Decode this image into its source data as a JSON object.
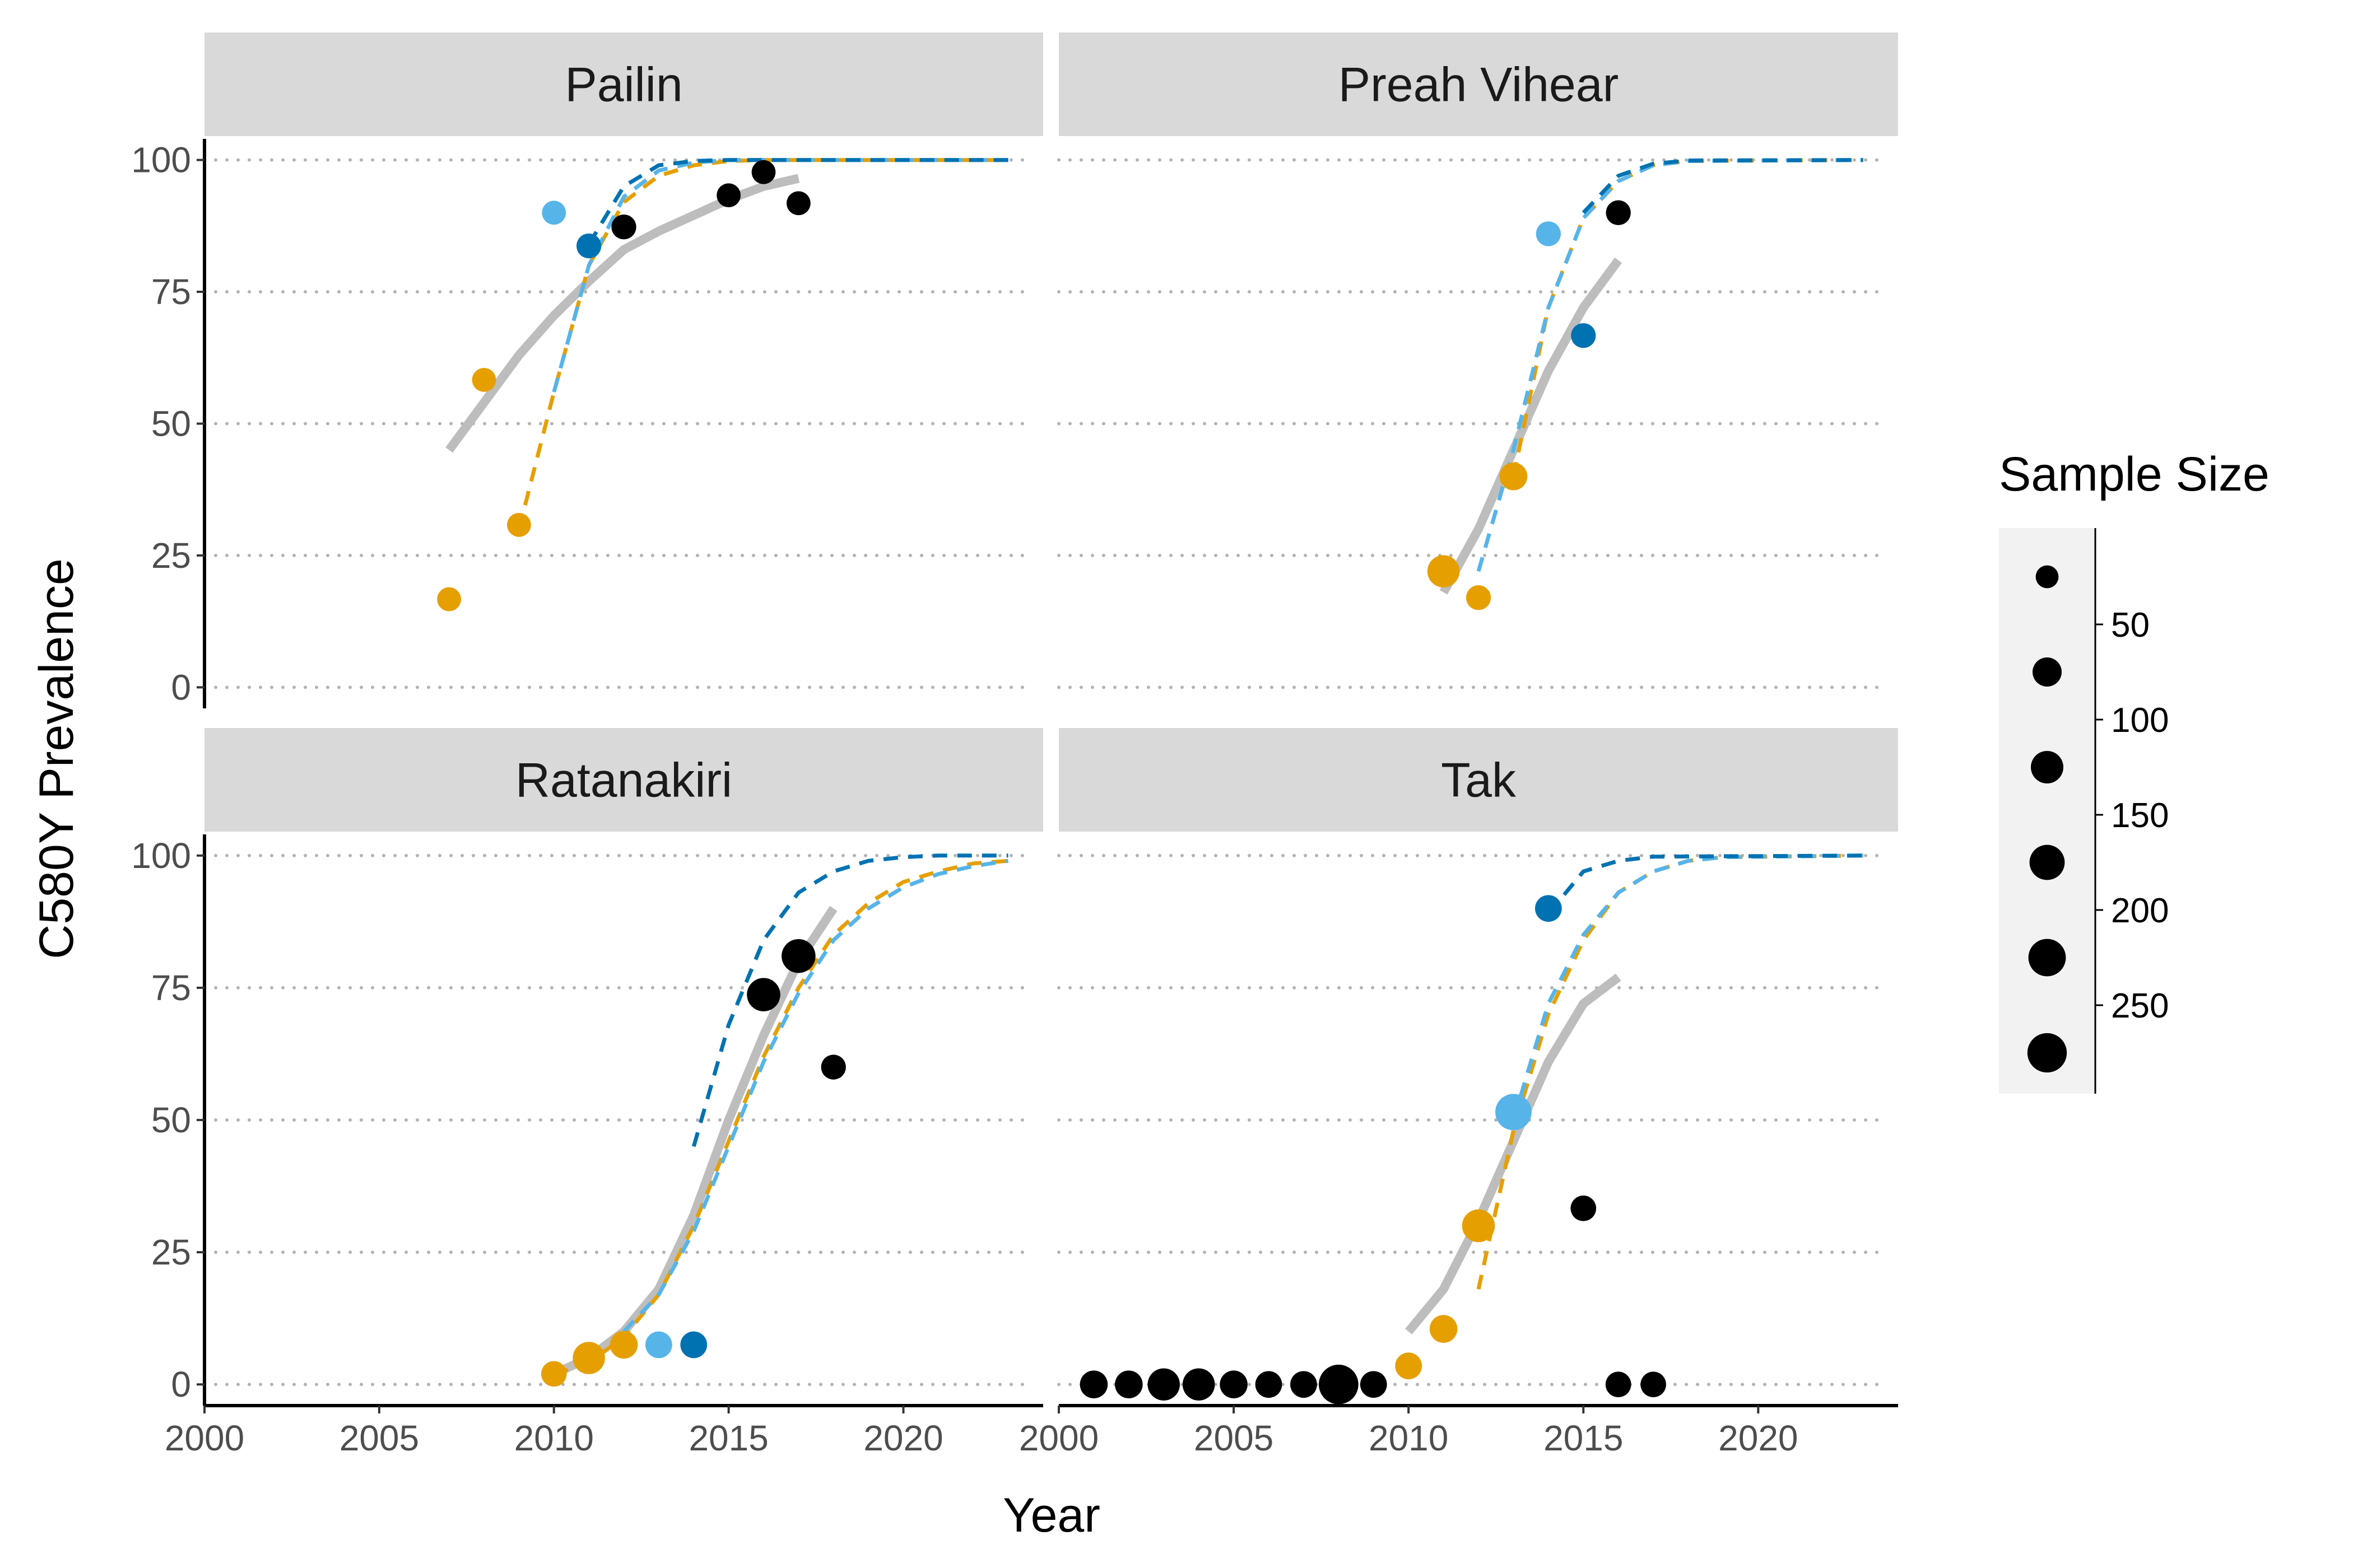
{
  "chart_data": {
    "type": "scatter",
    "xlabel": "Year",
    "ylabel": "C580Y Prevalence",
    "xlim": [
      2000,
      2024
    ],
    "ylim": [
      -4,
      104
    ],
    "x_ticks": [
      "2000",
      "2005",
      "2010",
      "2015",
      "2020"
    ],
    "y_ticks": [
      "0",
      "25",
      "50",
      "75",
      "100"
    ],
    "grid": "horizontal-dotted",
    "colors": {
      "gray": "#bdbdbd",
      "dark_blue": "#0072b2",
      "light_blue": "#56b4e9",
      "orange": "#e69f00",
      "black": "#000000",
      "strip": "#d9d9d9",
      "grid": "#b3b3b3",
      "legend_bg": "#f2f2f2"
    },
    "legend": {
      "title": "Sample Size",
      "position": "right",
      "size_scale": {
        "min": 20,
        "max": 300
      },
      "labels": [
        "50",
        "100",
        "150",
        "200",
        "250"
      ],
      "label_values": [
        50,
        100,
        150,
        200,
        250
      ],
      "key_sizes": [
        25,
        75,
        125,
        175,
        225,
        275
      ]
    },
    "panels": [
      {
        "title": "Pailin",
        "points": [
          {
            "x": 2007,
            "y": 16.7,
            "n": 30,
            "color": "orange"
          },
          {
            "x": 2008,
            "y": 58.3,
            "n": 30,
            "color": "orange"
          },
          {
            "x": 2009,
            "y": 30.8,
            "n": 30,
            "color": "orange"
          },
          {
            "x": 2010,
            "y": 90,
            "n": 30,
            "color": "light_blue"
          },
          {
            "x": 2011,
            "y": 83.7,
            "n": 35,
            "color": "dark_blue"
          },
          {
            "x": 2012,
            "y": 87.3,
            "n": 35,
            "color": "black"
          },
          {
            "x": 2015,
            "y": 93.3,
            "n": 30,
            "color": "black"
          },
          {
            "x": 2016,
            "y": 97.7,
            "n": 30,
            "color": "black"
          },
          {
            "x": 2017,
            "y": 91.8,
            "n": 30,
            "color": "black"
          }
        ],
        "lines": [
          {
            "color": "gray",
            "style": "solid",
            "x": [
              2007,
              2008,
              2009,
              2010,
              2011,
              2012,
              2013,
              2014,
              2015,
              2016,
              2017
            ],
            "y": [
              45,
              54,
              63,
              70.5,
              77,
              83,
              86.5,
              89.5,
              92.5,
              95,
              96.5
            ]
          },
          {
            "color": "orange",
            "style": "dashed",
            "x": [
              2009,
              2010,
              2011,
              2012,
              2013,
              2014,
              2015,
              2016,
              2023
            ],
            "y": [
              30,
              56,
              80,
              92,
              97,
              99,
              99.8,
              100,
              100
            ]
          },
          {
            "color": "light_blue",
            "style": "dashed",
            "x": [
              2010,
              2011,
              2012,
              2013,
              2014,
              2015,
              2016,
              2023
            ],
            "y": [
              56,
              80,
              93,
              98,
              99.5,
              100,
              100,
              100
            ]
          },
          {
            "color": "dark_blue",
            "style": "dashed",
            "x": [
              2011,
              2012,
              2013,
              2014,
              2015,
              2016,
              2023
            ],
            "y": [
              84,
              95,
              99,
              99.8,
              100,
              100,
              100
            ]
          }
        ]
      },
      {
        "title": "Preah Vihear",
        "points": [
          {
            "x": 2011,
            "y": 22,
            "n": 120,
            "color": "orange"
          },
          {
            "x": 2012,
            "y": 17,
            "n": 35,
            "color": "orange"
          },
          {
            "x": 2013,
            "y": 40,
            "n": 60,
            "color": "orange"
          },
          {
            "x": 2014,
            "y": 86,
            "n": 35,
            "color": "light_blue"
          },
          {
            "x": 2015,
            "y": 66.7,
            "n": 35,
            "color": "dark_blue"
          },
          {
            "x": 2016,
            "y": 90,
            "n": 35,
            "color": "black"
          }
        ],
        "lines": [
          {
            "color": "gray",
            "style": "solid",
            "x": [
              2011,
              2012,
              2013,
              2014,
              2015,
              2016
            ],
            "y": [
              18,
              30,
              45,
              60,
              72,
              81
            ]
          },
          {
            "color": "orange",
            "style": "dashed",
            "x": [
              2013,
              2014,
              2015,
              2016,
              2017,
              2018,
              2023
            ],
            "y": [
              40,
              72,
              89,
              96,
              99,
              99.8,
              100
            ]
          },
          {
            "color": "light_blue",
            "style": "dashed",
            "x": [
              2012,
              2013,
              2014,
              2015,
              2016,
              2017,
              2018,
              2023
            ],
            "y": [
              22,
              45,
              72,
              89,
              96,
              99,
              99.8,
              100
            ]
          },
          {
            "color": "dark_blue",
            "style": "dashed",
            "x": [
              2015,
              2016,
              2017,
              2018,
              2023
            ],
            "y": [
              90,
              97,
              99.3,
              99.9,
              100
            ]
          }
        ]
      },
      {
        "title": "Ratanakiri",
        "points": [
          {
            "x": 2010,
            "y": 2,
            "n": 40,
            "color": "orange"
          },
          {
            "x": 2011,
            "y": 5,
            "n": 120,
            "color": "orange"
          },
          {
            "x": 2012,
            "y": 7.5,
            "n": 60,
            "color": "orange"
          },
          {
            "x": 2013,
            "y": 7.5,
            "n": 50,
            "color": "light_blue"
          },
          {
            "x": 2014,
            "y": 7.5,
            "n": 50,
            "color": "dark_blue"
          },
          {
            "x": 2016,
            "y": 73.7,
            "n": 140,
            "color": "black"
          },
          {
            "x": 2017,
            "y": 81,
            "n": 150,
            "color": "black"
          },
          {
            "x": 2018,
            "y": 60,
            "n": 35,
            "color": "black"
          }
        ],
        "lines": [
          {
            "color": "gray",
            "style": "solid",
            "x": [
              2010,
              2011,
              2012,
              2013,
              2014,
              2015,
              2016,
              2017,
              2018
            ],
            "y": [
              2,
              5,
              10,
              18,
              32,
              50,
              66,
              80,
              90
            ]
          },
          {
            "color": "orange",
            "style": "dashed",
            "x": [
              2010,
              2011,
              2012,
              2013,
              2014,
              2015,
              2016,
              2017,
              2018,
              2019,
              2020,
              2021,
              2022,
              2023
            ],
            "y": [
              2,
              4,
              9,
              17,
              30,
              46,
              62,
              75,
              85,
              91,
              95,
              97,
              98.5,
              99
            ]
          },
          {
            "color": "light_blue",
            "style": "dashed",
            "x": [
              2012,
              2013,
              2014,
              2015,
              2016,
              2017,
              2018,
              2019,
              2020,
              2021,
              2022,
              2023
            ],
            "y": [
              10,
              17,
              29,
              45,
              61,
              74,
              84,
              90,
              94,
              96.5,
              98,
              99
            ]
          },
          {
            "color": "dark_blue",
            "style": "dashed",
            "x": [
              2014,
              2015,
              2016,
              2017,
              2018,
              2019,
              2020,
              2021,
              2022,
              2023
            ],
            "y": [
              45,
              68,
              84,
              93,
              97,
              99,
              99.7,
              100,
              100,
              100
            ]
          }
        ]
      },
      {
        "title": "Tak",
        "points": [
          {
            "x": 2001,
            "y": 0,
            "n": 60,
            "color": "black"
          },
          {
            "x": 2002,
            "y": 0,
            "n": 60,
            "color": "black"
          },
          {
            "x": 2003,
            "y": 0,
            "n": 120,
            "color": "black"
          },
          {
            "x": 2004,
            "y": 0,
            "n": 120,
            "color": "black"
          },
          {
            "x": 2005,
            "y": 0,
            "n": 60,
            "color": "black"
          },
          {
            "x": 2006,
            "y": 0,
            "n": 50,
            "color": "black"
          },
          {
            "x": 2007,
            "y": 0,
            "n": 50,
            "color": "black"
          },
          {
            "x": 2008,
            "y": 0,
            "n": 280,
            "color": "black"
          },
          {
            "x": 2009,
            "y": 0,
            "n": 50,
            "color": "black"
          },
          {
            "x": 2010,
            "y": 3.5,
            "n": 50,
            "color": "orange"
          },
          {
            "x": 2011,
            "y": 10.5,
            "n": 60,
            "color": "orange"
          },
          {
            "x": 2012,
            "y": 30,
            "n": 130,
            "color": "orange"
          },
          {
            "x": 2013,
            "y": 51.5,
            "n": 200,
            "color": "light_blue"
          },
          {
            "x": 2014,
            "y": 90,
            "n": 50,
            "color": "dark_blue"
          },
          {
            "x": 2015,
            "y": 33.3,
            "n": 40,
            "color": "black"
          },
          {
            "x": 2016,
            "y": 0,
            "n": 40,
            "color": "black"
          },
          {
            "x": 2017,
            "y": 0,
            "n": 40,
            "color": "black"
          }
        ],
        "lines": [
          {
            "color": "gray",
            "style": "solid",
            "x": [
              2010,
              2011,
              2012,
              2013,
              2014,
              2015,
              2016
            ],
            "y": [
              10,
              18,
              31,
              46,
              61,
              72,
              77
            ]
          },
          {
            "color": "orange",
            "style": "dashed",
            "x": [
              2012,
              2013,
              2014,
              2015,
              2016,
              2017,
              2018,
              2019,
              2023
            ],
            "y": [
              18,
              48,
              70,
              84,
              93,
              97,
              99,
              99.7,
              100
            ]
          },
          {
            "color": "light_blue",
            "style": "dashed",
            "x": [
              2013,
              2014,
              2015,
              2016,
              2017,
              2018,
              2019,
              2023
            ],
            "y": [
              50,
              72,
              85,
              93,
              97,
              99,
              99.7,
              100
            ]
          },
          {
            "color": "dark_blue",
            "style": "dashed",
            "x": [
              2014,
              2015,
              2016,
              2017,
              2023
            ],
            "y": [
              89,
              97,
              99,
              99.8,
              100
            ]
          }
        ]
      }
    ]
  }
}
